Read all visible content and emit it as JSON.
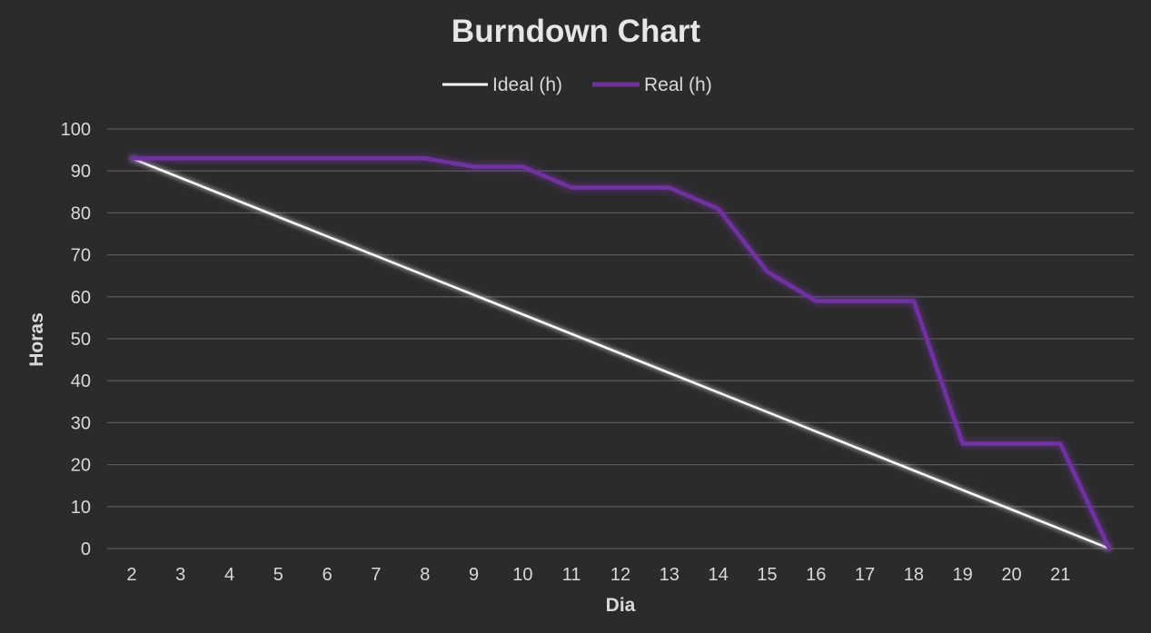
{
  "chart_data": {
    "type": "line",
    "title": "Burndown Chart",
    "xlabel": "Dia",
    "ylabel": "Horas",
    "x_tick_labels": [
      "2",
      "3",
      "4",
      "5",
      "6",
      "7",
      "8",
      "9",
      "10",
      "11",
      "12",
      "13",
      "14",
      "15",
      "16",
      "17",
      "18",
      "19",
      "20",
      "21",
      ""
    ],
    "ylim": [
      0,
      100
    ],
    "y_ticks": [
      0,
      10,
      20,
      30,
      40,
      50,
      60,
      70,
      80,
      90,
      100
    ],
    "grid": true,
    "legend_position": "top",
    "series": [
      {
        "name": "Ideal (h)",
        "color": "#ffffff",
        "values": [
          93,
          88.35,
          83.7,
          79.05,
          74.4,
          69.75,
          65.1,
          60.45,
          55.8,
          51.15,
          46.5,
          41.85,
          37.2,
          32.55,
          27.9,
          23.25,
          18.6,
          13.95,
          9.3,
          4.65,
          0
        ]
      },
      {
        "name": "Real (h)",
        "color": "#7030a0",
        "values": [
          93,
          93,
          93,
          93,
          93,
          93,
          93,
          91,
          91,
          86,
          86,
          86,
          81,
          66,
          59,
          59,
          59,
          25,
          25,
          25,
          0
        ]
      }
    ]
  }
}
